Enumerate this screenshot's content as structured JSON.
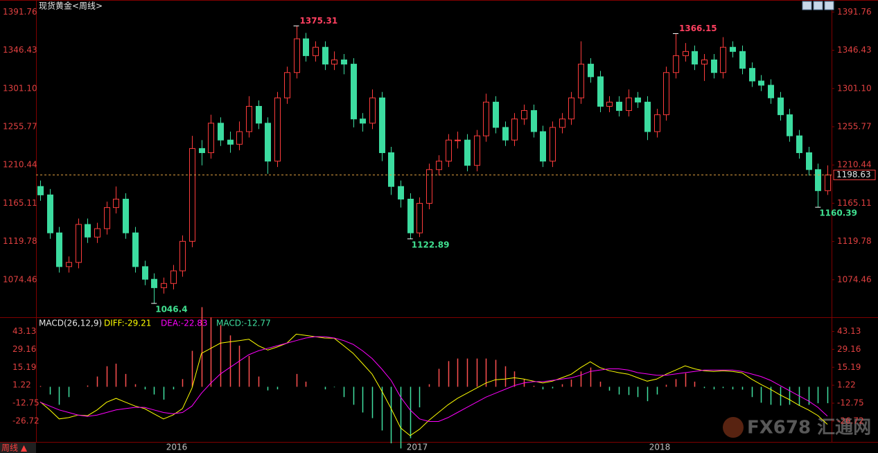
{
  "chart_data": [
    {
      "type": "candlestick",
      "title": "现货黄金<周线>",
      "up_color": "#ff3c3c",
      "down_color": "#3cdca0",
      "ylim": [
        1030,
        1406
      ],
      "yticks": [
        1391.76,
        1346.43,
        {
          "value": 1301.1,
          "label": "1301.10"
        },
        1255.77,
        1210.44,
        1165.11,
        1119.78,
        1074.46
      ],
      "last_price": 1198.63,
      "last_price_color": "#e0a040",
      "x_labels": [
        "2016",
        "2017",
        "2018"
      ],
      "candles": [
        [
          1185,
          1192,
          1168,
          1175
        ],
        [
          1175,
          1182,
          1123,
          1130
        ],
        [
          1130,
          1137,
          1083,
          1090
        ],
        [
          1090,
          1102,
          1083,
          1095
        ],
        [
          1095,
          1147,
          1088,
          1140
        ],
        [
          1140,
          1147,
          1118,
          1125
        ],
        [
          1125,
          1142,
          1118,
          1135
        ],
        [
          1135,
          1167,
          1128,
          1160
        ],
        [
          1160,
          1185,
          1153,
          1170
        ],
        [
          1170,
          1177,
          1123,
          1130
        ],
        [
          1130,
          1137,
          1083,
          1090
        ],
        [
          1090,
          1097,
          1068,
          1075
        ],
        [
          1075,
          1082,
          1046.4,
          1065
        ],
        [
          1065,
          1077,
          1058,
          1070
        ],
        [
          1070,
          1092,
          1063,
          1085
        ],
        [
          1085,
          1127,
          1078,
          1120
        ],
        [
          1120,
          1245,
          1113,
          1230
        ],
        [
          1230,
          1240,
          1210,
          1225
        ],
        [
          1225,
          1270,
          1218,
          1260
        ],
        [
          1260,
          1267,
          1233,
          1240
        ],
        [
          1240,
          1250,
          1225,
          1235
        ],
        [
          1235,
          1262,
          1228,
          1250
        ],
        [
          1250,
          1292,
          1243,
          1280
        ],
        [
          1280,
          1287,
          1253,
          1260
        ],
        [
          1260,
          1267,
          1200,
          1215
        ],
        [
          1215,
          1297,
          1208,
          1290
        ],
        [
          1290,
          1327,
          1283,
          1320
        ],
        [
          1320,
          1375.31,
          1313,
          1360
        ],
        [
          1360,
          1367,
          1333,
          1340
        ],
        [
          1340,
          1357,
          1333,
          1350
        ],
        [
          1350,
          1357,
          1323,
          1330
        ],
        [
          1330,
          1345,
          1323,
          1335
        ],
        [
          1335,
          1342,
          1318,
          1330
        ],
        [
          1330,
          1337,
          1255,
          1265
        ],
        [
          1265,
          1272,
          1250,
          1260
        ],
        [
          1260,
          1300,
          1253,
          1290
        ],
        [
          1290,
          1297,
          1215,
          1225
        ],
        [
          1225,
          1232,
          1175,
          1185
        ],
        [
          1185,
          1192,
          1160,
          1170
        ],
        [
          1170,
          1177,
          1122.89,
          1130
        ],
        [
          1130,
          1172,
          1125,
          1165
        ],
        [
          1165,
          1212,
          1158,
          1205
        ],
        [
          1205,
          1222,
          1198,
          1215
        ],
        [
          1215,
          1247,
          1208,
          1240
        ],
        [
          1240,
          1250,
          1230,
          1240
        ],
        [
          1240,
          1247,
          1203,
          1210
        ],
        [
          1210,
          1252,
          1203,
          1245
        ],
        [
          1245,
          1295,
          1238,
          1285
        ],
        [
          1285,
          1292,
          1248,
          1255
        ],
        [
          1255,
          1262,
          1233,
          1240
        ],
        [
          1240,
          1272,
          1233,
          1265
        ],
        [
          1265,
          1282,
          1258,
          1275
        ],
        [
          1275,
          1282,
          1243,
          1250
        ],
        [
          1250,
          1257,
          1208,
          1215
        ],
        [
          1215,
          1262,
          1208,
          1255
        ],
        [
          1255,
          1272,
          1248,
          1265
        ],
        [
          1265,
          1297,
          1258,
          1290
        ],
        [
          1290,
          1357,
          1283,
          1330
        ],
        [
          1330,
          1337,
          1308,
          1315
        ],
        [
          1315,
          1322,
          1273,
          1280
        ],
        [
          1280,
          1292,
          1273,
          1285
        ],
        [
          1285,
          1292,
          1268,
          1275
        ],
        [
          1275,
          1300,
          1268,
          1290
        ],
        [
          1290,
          1297,
          1278,
          1285
        ],
        [
          1285,
          1292,
          1240,
          1250
        ],
        [
          1250,
          1277,
          1243,
          1270
        ],
        [
          1270,
          1327,
          1263,
          1320
        ],
        [
          1320,
          1366.15,
          1313,
          1340
        ],
        [
          1340,
          1355,
          1333,
          1345
        ],
        [
          1345,
          1352,
          1323,
          1330
        ],
        [
          1330,
          1342,
          1310,
          1335
        ],
        [
          1335,
          1342,
          1313,
          1320
        ],
        [
          1320,
          1362,
          1313,
          1350
        ],
        [
          1350,
          1357,
          1338,
          1345
        ],
        [
          1345,
          1352,
          1318,
          1325
        ],
        [
          1325,
          1332,
          1303,
          1310
        ],
        [
          1310,
          1317,
          1298,
          1305
        ],
        [
          1305,
          1312,
          1283,
          1290
        ],
        [
          1290,
          1297,
          1263,
          1270
        ],
        [
          1270,
          1277,
          1238,
          1245
        ],
        [
          1245,
          1252,
          1218,
          1225
        ],
        [
          1225,
          1232,
          1198,
          1205
        ],
        [
          1205,
          1212,
          1160.39,
          1180
        ],
        [
          1180,
          1210,
          1175,
          1198.63
        ]
      ]
    },
    {
      "type": "macd",
      "title": "MACD(26,12,9)",
      "ylim": [
        -44,
        52
      ],
      "yticks": [
        43.13,
        29.16,
        15.19,
        1.22,
        -12.75,
        -26.72
      ],
      "series": [
        {
          "name": "DIFF:-29.21",
          "color": "#ffff00",
          "style": "line",
          "values": [
            -11.7,
            -18,
            -25,
            -24,
            -22,
            -22.5,
            -18,
            -12,
            -9,
            -12,
            -15,
            -17,
            -21,
            -25,
            -22,
            -17,
            -1,
            26,
            30,
            34,
            35,
            36,
            37,
            32,
            28.6,
            31,
            34,
            41,
            40,
            39,
            38,
            37.8,
            32,
            26,
            18,
            9.8,
            -3,
            -17,
            -32,
            -38,
            -33,
            -26,
            -20,
            -14,
            -9,
            -5,
            -1,
            3,
            5.5,
            6,
            7,
            6,
            4.4,
            3,
            4.4,
            7,
            9.8,
            15,
            19.5,
            15,
            12.5,
            11,
            9.8,
            7,
            4.4,
            6,
            9.8,
            13,
            16.3,
            14,
            12.5,
            12,
            12.5,
            12,
            10.9,
            6,
            1.8,
            -2,
            -6.3,
            -10,
            -14.4,
            -18,
            -22.4,
            -29.21
          ]
        },
        {
          "name": "DEA:-22.83",
          "color": "#ff00ff",
          "style": "line",
          "values": [
            -12,
            -15,
            -18,
            -20,
            -22,
            -23,
            -22,
            -20,
            -18,
            -17,
            -16,
            -16,
            -18,
            -20,
            -21,
            -20,
            -15,
            -5,
            3,
            10,
            15,
            20,
            25,
            28,
            30,
            32,
            34,
            36,
            38,
            39,
            39,
            38,
            36,
            33,
            28,
            22,
            14,
            5,
            -8,
            -18,
            -25,
            -27,
            -27,
            -24,
            -20,
            -16,
            -12,
            -8,
            -5,
            -2,
            1,
            3,
            4,
            4,
            5,
            6,
            7,
            9,
            12,
            13,
            14,
            14,
            13,
            11,
            10,
            9,
            9,
            10,
            11,
            12,
            13,
            13,
            13,
            13,
            12,
            10,
            8,
            5,
            1,
            -3,
            -7,
            -11,
            -16,
            -22.83
          ]
        },
        {
          "name": "MACD:-12.77",
          "color": "#40e0a0",
          "up_color": "#ff5050",
          "style": "bar",
          "values": [
            0.6,
            -6,
            -14,
            -8,
            0,
            1,
            8,
            16,
            18,
            10,
            2,
            -2,
            -6,
            -10,
            -2,
            6,
            28,
            62,
            54,
            48,
            40,
            32,
            24,
            8,
            -2.8,
            -2,
            0,
            10,
            4,
            0,
            -2,
            -0.4,
            -8,
            -14,
            -20,
            -24.4,
            -34,
            -44,
            -48,
            -40,
            -16,
            2,
            14,
            20,
            22,
            22,
            22,
            22,
            21,
            16,
            12,
            6,
            0.8,
            -2,
            -1.2,
            2,
            5.6,
            12,
            15,
            4,
            -3,
            -6,
            -6.4,
            -8,
            -11.2,
            -6,
            1.6,
            6,
            10.6,
            4,
            -1,
            -2,
            -1,
            -2,
            -2.2,
            -8,
            -12.4,
            -14,
            -14.6,
            -14,
            -14.8,
            -14,
            -12.8,
            -12.77
          ]
        }
      ]
    }
  ],
  "period_button": "周线 ▲",
  "watermark": "FX678 汇通网"
}
